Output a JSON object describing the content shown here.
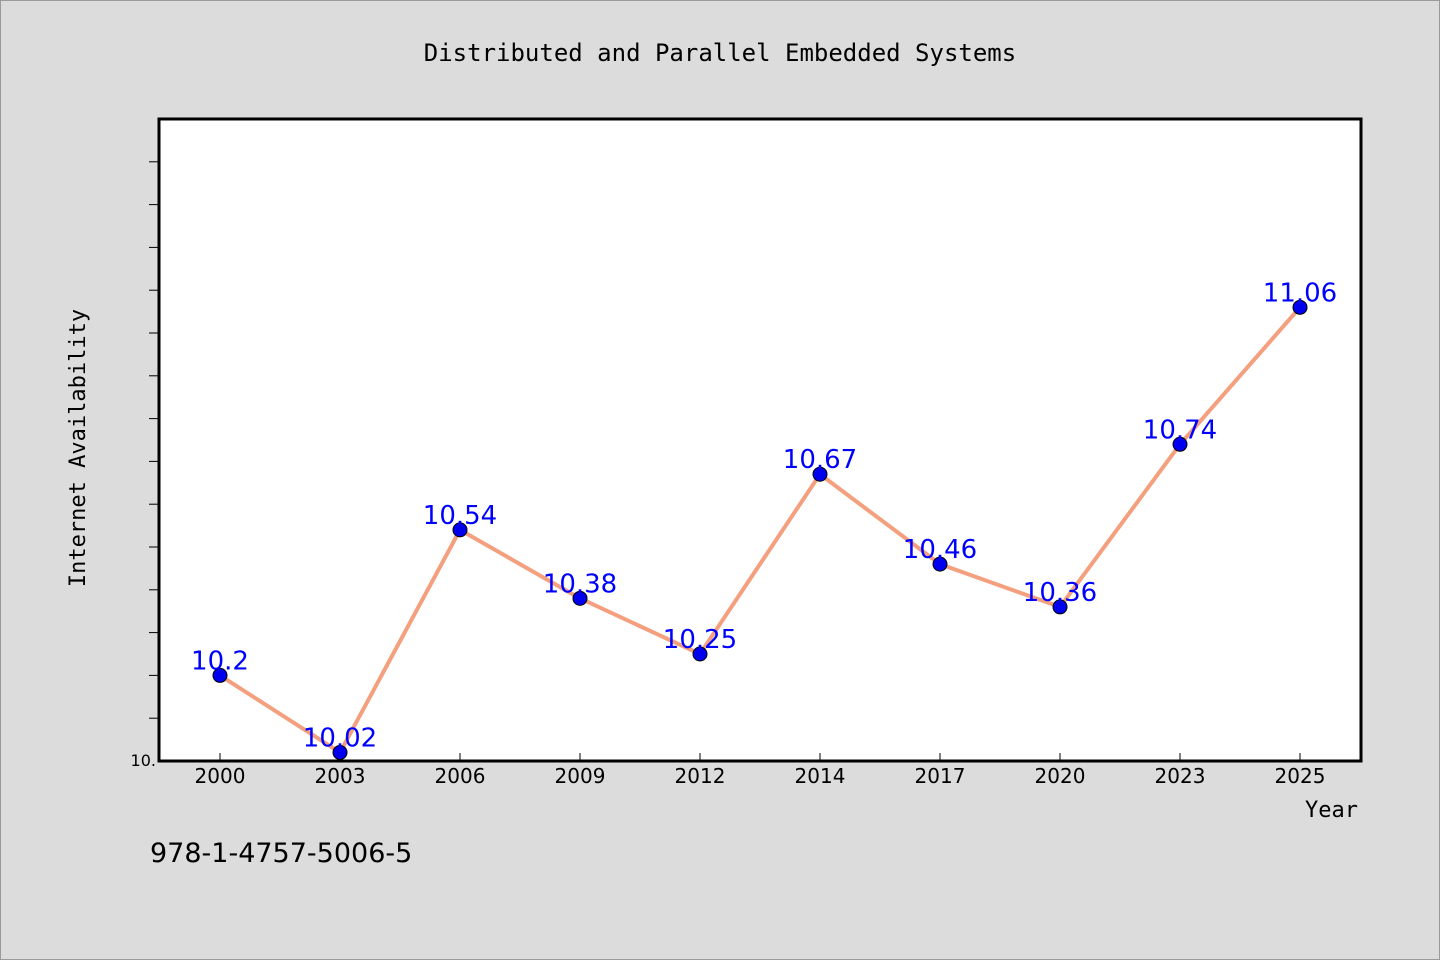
{
  "chart_data": {
    "type": "line",
    "title": "Distributed and Parallel Embedded Systems",
    "xlabel": "Year",
    "ylabel": "Internet Availability",
    "categories": [
      "2000",
      "2003",
      "2006",
      "2009",
      "2012",
      "2014",
      "2017",
      "2020",
      "2023",
      "2025"
    ],
    "series": [
      {
        "values": [
          10.2,
          10.02,
          10.54,
          10.38,
          10.25,
          10.67,
          10.46,
          10.36,
          10.74,
          11.06
        ],
        "data_labels": [
          "10.2",
          "10.02",
          "10.54",
          "10.38",
          "10.25",
          "10.67",
          "10.46",
          "10.36",
          "10.74",
          "11.06"
        ]
      }
    ],
    "ylim": [
      10.0,
      11.5
    ],
    "y_tick_label": "10.",
    "grid": false,
    "legend": "none",
    "colors": {
      "line": "#f4a07f",
      "marker": "#0000ee",
      "data_label": "#0000ff",
      "background": "#dcdcdc",
      "plot_area": "#ffffff"
    }
  },
  "footer_text": "978-1-4757-5006-5"
}
